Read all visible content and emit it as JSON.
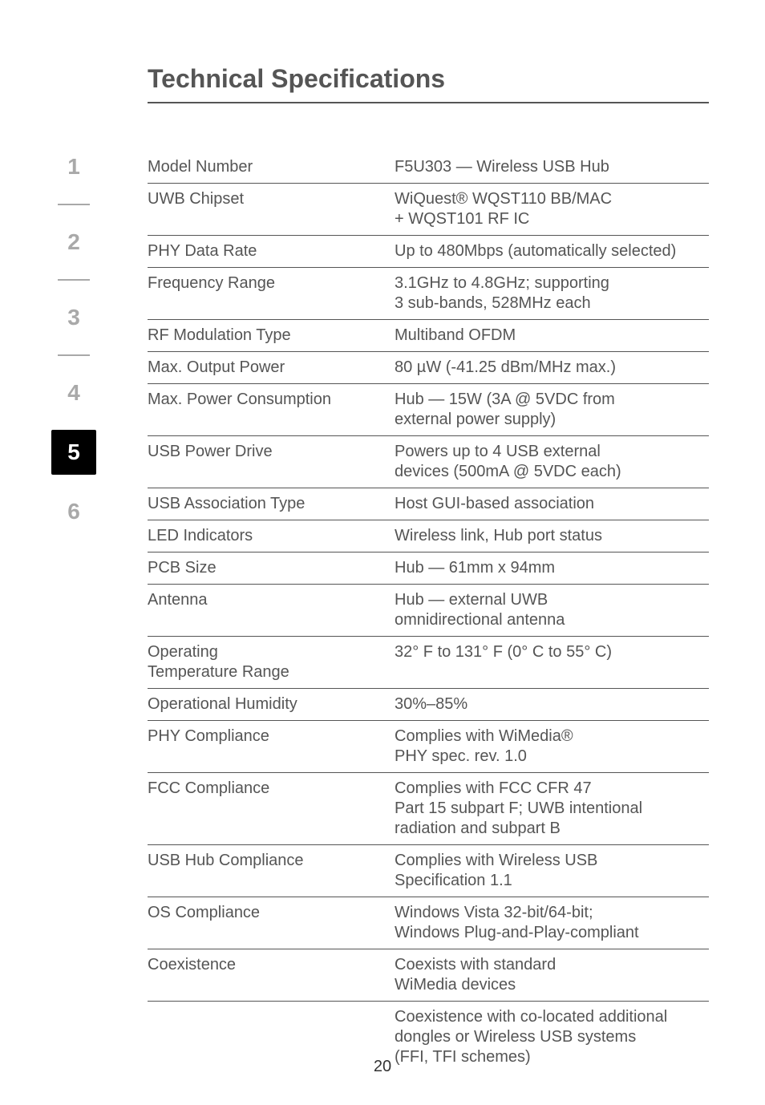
{
  "page": {
    "title": "Technical Specifications",
    "page_number": "20",
    "title_fontsize": 32,
    "body_fontsize": 20,
    "text_color": "#555555",
    "rule_color": "#555555",
    "background_color": "#ffffff"
  },
  "sidebar": {
    "tabs": [
      "1",
      "2",
      "3",
      "4",
      "5",
      "6"
    ],
    "active_index": 4,
    "active_bg": "#000000",
    "active_fg": "#ffffff",
    "inactive_fg": "#a9a9a9"
  },
  "specs": [
    {
      "label": "Model Number",
      "value": "F5U303 — Wireless USB Hub"
    },
    {
      "label": "UWB Chipset",
      "value": "WiQuest® WQST110 BB/MAC\n+ WQST101 RF IC"
    },
    {
      "label": "PHY Data Rate",
      "value": "Up to 480Mbps (automatically selected)"
    },
    {
      "label": "Frequency Range",
      "value": "3.1GHz to 4.8GHz; supporting\n3 sub-bands, 528MHz each"
    },
    {
      "label": "RF Modulation Type",
      "value": "Multiband OFDM"
    },
    {
      "label": "Max. Output Power",
      "value": "80 µW (-41.25 dBm/MHz max.)"
    },
    {
      "label": "Max. Power Consumption",
      "value": "Hub — 15W (3A @ 5VDC from\nexternal power supply)"
    },
    {
      "label": "USB Power Drive",
      "value": "Powers up to 4 USB external\ndevices (500mA @ 5VDC each)"
    },
    {
      "label": "USB Association Type",
      "value": "Host GUI-based association"
    },
    {
      "label": "LED Indicators",
      "value": "Wireless link, Hub port status"
    },
    {
      "label": "PCB Size",
      "value": "Hub — 61mm x 94mm"
    },
    {
      "label": "Antenna",
      "value": "Hub — external UWB\nomnidirectional antenna"
    },
    {
      "label": "Operating\nTemperature Range",
      "value": "32° F to 131° F (0° C to 55° C)"
    },
    {
      "label": "Operational Humidity",
      "value": "30%–85%"
    },
    {
      "label": "PHY Compliance",
      "value": "Complies with WiMedia®\nPHY spec. rev. 1.0"
    },
    {
      "label": "FCC Compliance",
      "value": "Complies with FCC CFR 47\nPart 15 subpart F; UWB intentional\nradiation and subpart B"
    },
    {
      "label": "USB Hub Compliance",
      "value": "Complies with Wireless USB\nSpecification 1.1"
    },
    {
      "label": "OS Compliance",
      "value": "Windows Vista 32-bit/64-bit;\nWindows Plug-and-Play-compliant"
    },
    {
      "label": "Coexistence",
      "value": "Coexists with standard\nWiMedia devices"
    },
    {
      "label": "",
      "value": "Coexistence with co-located additional\ndongles or Wireless USB systems\n(FFI, TFI schemes)"
    }
  ]
}
